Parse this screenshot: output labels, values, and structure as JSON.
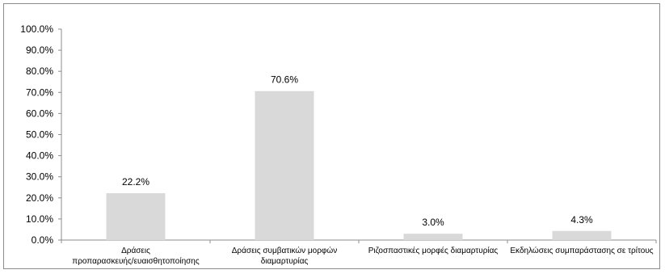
{
  "chart_data": {
    "type": "bar",
    "categories": [
      [
        "Δράσεις",
        "προπαρασκευής/ευαισθητοποίησης"
      ],
      [
        "Δράσεις συμβατικών μορφών",
        "διαμαρτυρίας"
      ],
      [
        "Ριζοσπαστικές μορφές διαμαρτυρίας"
      ],
      [
        "Εκδηλώσεις συμπαράστασης σε τρίτους"
      ]
    ],
    "values": [
      22.2,
      70.6,
      3.0,
      4.3
    ],
    "value_labels": [
      "22.2%",
      "70.6%",
      "3.0%",
      "4.3%"
    ],
    "yticks": [
      "0.0%",
      "10.0%",
      "20.0%",
      "30.0%",
      "40.0%",
      "50.0%",
      "60.0%",
      "70.0%",
      "80.0%",
      "90.0%",
      "100.0%"
    ],
    "ylim": [
      0,
      100
    ],
    "grid": false,
    "legend": "none",
    "bar_color": "#d9d9d9",
    "axis_color": "#8c8c8c"
  }
}
